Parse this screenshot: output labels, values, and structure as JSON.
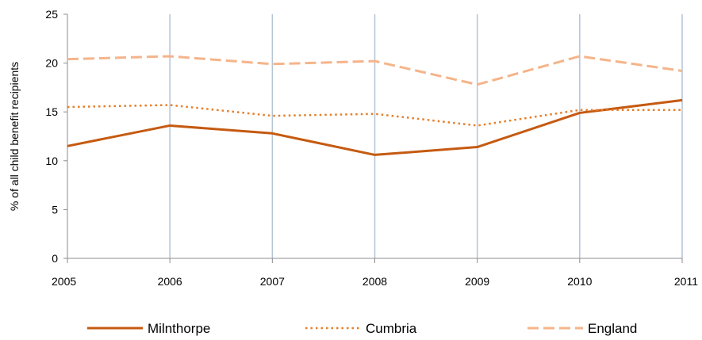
{
  "chart_data": {
    "type": "line",
    "title": "",
    "xlabel": "",
    "ylabel": "% of all child benefit recipients",
    "x": [
      "2005",
      "2006",
      "2007",
      "2008",
      "2009",
      "2010",
      "2011"
    ],
    "ylim": [
      0,
      25
    ],
    "yticks": [
      "0",
      "5",
      "10",
      "15",
      "20",
      "25"
    ],
    "grid": "vertical",
    "legend_position": "bottom",
    "series": [
      {
        "name": "Milnthorpe",
        "values": [
          11.5,
          13.6,
          12.8,
          10.6,
          11.4,
          14.9,
          16.2
        ],
        "color": "#c55a11",
        "style": "solid"
      },
      {
        "name": "Cumbria",
        "values": [
          15.5,
          15.7,
          14.6,
          14.8,
          13.6,
          15.2,
          15.2
        ],
        "color": "#e57e28",
        "style": "dotted"
      },
      {
        "name": "England",
        "values": [
          20.4,
          20.7,
          19.9,
          20.2,
          17.8,
          20.7,
          19.2
        ],
        "color": "#f5b48a",
        "style": "dashed"
      }
    ]
  }
}
